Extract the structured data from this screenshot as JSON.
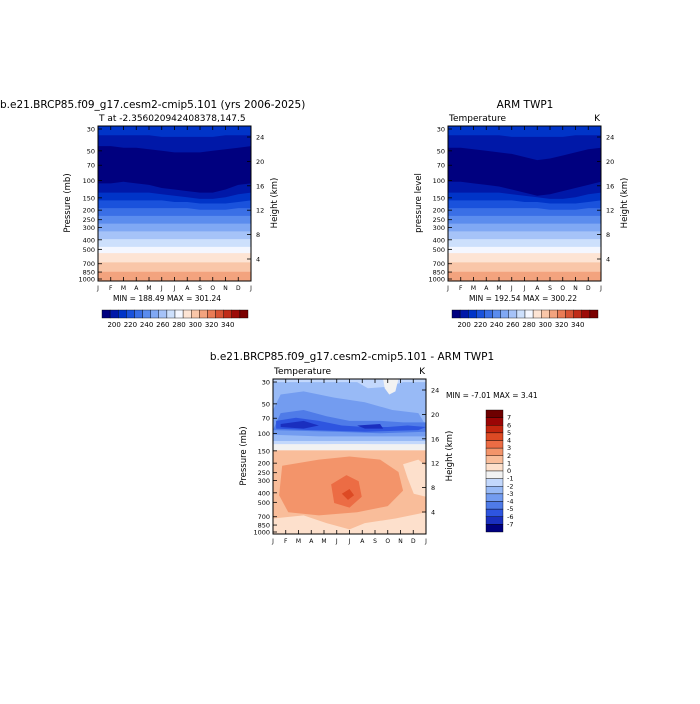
{
  "palettes": {
    "abs": [
      "#00007f",
      "#0018a8",
      "#0034c8",
      "#1a52dc",
      "#3a6fe6",
      "#5b8cee",
      "#80a8f4",
      "#a6c3f8",
      "#cde0fc",
      "#f4f7ff",
      "#fde4d4",
      "#f9c6a8",
      "#f3a37e",
      "#ea7c56",
      "#d85434",
      "#c02c18",
      "#9c0c08",
      "#7a0000"
    ],
    "diff": [
      "#00007f",
      "#1a2fbf",
      "#2e55e0",
      "#4f7be8",
      "#739cf0",
      "#98baf6",
      "#c3d8fc",
      "#f2f2f2",
      "#fde0cc",
      "#f9bd9a",
      "#f3946a",
      "#ec6c44",
      "#dd4a24",
      "#c4260f",
      "#9b0505",
      "#6e0000"
    ]
  },
  "months": [
    "J",
    "F",
    "M",
    "A",
    "M",
    "J",
    "J",
    "A",
    "S",
    "O",
    "N",
    "D",
    "J"
  ],
  "pressure_ticks": [
    "30",
    "50",
    "70",
    "100",
    "150",
    "200",
    "250",
    "300",
    "400",
    "500",
    "700",
    "850",
    "1000"
  ],
  "height_ticks": [
    "24",
    "20",
    "16",
    "12",
    "8",
    "4"
  ],
  "height_ticks_c": [
    "24",
    "20",
    "16",
    "12",
    "8",
    "4"
  ],
  "p1": {
    "title": "b.e21.BRCP85.f09_g17.cesm2-cmip5.101 (yrs 2006-2025)",
    "subtitle": "T at -2.3560209424083​78,147.5",
    "ylabel": "Pressure (mb)",
    "ylabel_right": "Height (km)",
    "minmax": "MIN = 188.49  MAX = 301.24"
  },
  "p2": {
    "title": "ARM TWP1",
    "subtitle_left": "Temperature",
    "subtitle_right": "K",
    "ylabel": "pressure level",
    "ylabel_right": "Height (km)",
    "minmax": "MIN = 192.54  MAX = 300.22"
  },
  "p3": {
    "title": "b.e21.BRCP85.f09_g17.cesm2-cmip5.101 - ARM TWP1",
    "subtitle_left": "Temperature",
    "subtitle_right": "K",
    "ylabel": "Pressure (mb)",
    "ylabel_right": "Height (km)",
    "minmax": "MIN = -7.01  MAX = 3.41"
  },
  "colorbar_abs_labels": [
    "200",
    "220",
    "240",
    "260",
    "280",
    "300",
    "320",
    "340"
  ],
  "colorbar_diff_labels": [
    "7",
    "6",
    "5",
    "4",
    "3",
    "2",
    "1",
    "0",
    "-1",
    "-2",
    "-3",
    "-4",
    "-5",
    "-6",
    "-7"
  ],
  "chart_data": [
    {
      "type": "heatmap",
      "title": "b.e21.BRCP85.f09_g17.cesm2-cmip5.101 (yrs 2006-2025)",
      "subtitle": "T at -2.356020942408378,147.5",
      "xlabel": "",
      "ylabel": "Pressure (mb)",
      "ylabel_right": "Height (km)",
      "x": [
        "J",
        "F",
        "M",
        "A",
        "M",
        "J",
        "J",
        "A",
        "S",
        "O",
        "N",
        "D",
        "J"
      ],
      "y_pressure": [
        30,
        50,
        70,
        100,
        150,
        200,
        250,
        300,
        400,
        500,
        700,
        850,
        1000
      ],
      "min": 188.49,
      "max": 301.24,
      "colorbar": [
        200,
        220,
        240,
        260,
        280,
        300,
        320,
        340
      ]
    },
    {
      "type": "heatmap",
      "title": "ARM TWP1",
      "subtitle": "Temperature",
      "units": "K",
      "ylabel": "pressure level",
      "ylabel_right": "Height (km)",
      "x": [
        "J",
        "F",
        "M",
        "A",
        "M",
        "J",
        "J",
        "A",
        "S",
        "O",
        "N",
        "D",
        "J"
      ],
      "y_pressure": [
        30,
        50,
        70,
        100,
        150,
        200,
        250,
        300,
        400,
        500,
        700,
        850,
        1000
      ],
      "min": 192.54,
      "max": 300.22,
      "colorbar": [
        200,
        220,
        240,
        260,
        280,
        300,
        320,
        340
      ]
    },
    {
      "type": "heatmap",
      "title": "b.e21.BRCP85.f09_g17.cesm2-cmip5.101 - ARM TWP1",
      "subtitle": "Temperature",
      "units": "K",
      "ylabel": "Pressure (mb)",
      "ylabel_right": "Height (km)",
      "x": [
        "J",
        "F",
        "M",
        "A",
        "M",
        "J",
        "J",
        "A",
        "S",
        "O",
        "N",
        "D",
        "J"
      ],
      "y_pressure": [
        30,
        50,
        70,
        100,
        150,
        200,
        250,
        300,
        400,
        500,
        700,
        850,
        1000
      ],
      "min": -7.01,
      "max": 3.41,
      "colorbar": [
        7,
        6,
        5,
        4,
        3,
        2,
        1,
        0,
        -1,
        -2,
        -3,
        -4,
        -5,
        -6,
        -7
      ]
    }
  ]
}
